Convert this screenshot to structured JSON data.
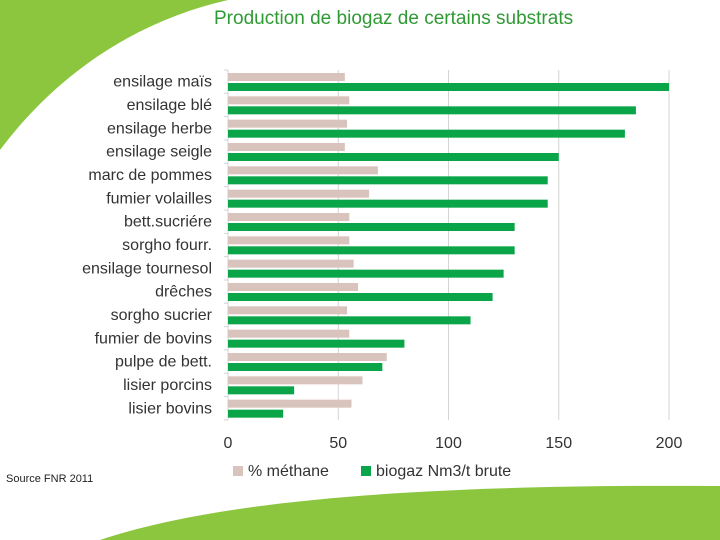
{
  "title": "Production de biogaz de certains substrats",
  "source": "Source FNR 2011",
  "colors": {
    "methane": "#d9c3bd",
    "biogaz": "#0aa548",
    "accent_green": "#8cc63f",
    "grid": "#d4d4d4"
  },
  "chart_data": {
    "type": "bar",
    "orientation": "horizontal",
    "title": "Production de biogaz de certains substrats",
    "categories": [
      "ensilage maïs",
      "ensilage blé",
      "ensilage herbe",
      "ensilage seigle",
      "marc de pommes",
      "fumier volailles",
      "bett.sucriére",
      "sorgho fourr.",
      "ensilage tournesol",
      "drêches",
      "sorgho sucrier",
      "fumier de bovins",
      "pulpe de bett.",
      "lisier porcins",
      "lisier bovins"
    ],
    "series": [
      {
        "name": "% méthane",
        "values": [
          53,
          55,
          54,
          53,
          68,
          64,
          55,
          55,
          57,
          59,
          54,
          55,
          72,
          61,
          56
        ]
      },
      {
        "name": "biogaz Nm3/t brute",
        "values": [
          200,
          185,
          180,
          150,
          145,
          145,
          130,
          130,
          125,
          120,
          110,
          80,
          70,
          30,
          25
        ]
      }
    ],
    "xlim": [
      0,
      200
    ],
    "xticks": [
      "0",
      "50",
      "100",
      "150",
      "200"
    ],
    "grid": true,
    "legend": "bottom"
  }
}
